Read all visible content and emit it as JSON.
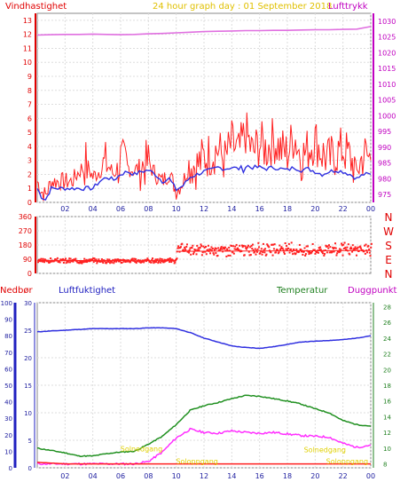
{
  "chart_data": [
    {
      "type": "line",
      "title": "24 hour graph day : 01 September 2018",
      "left_axis_label": "Vindhastighet",
      "right_axis_label": "Lufttrykk",
      "x_ticks": [
        "02",
        "04",
        "06",
        "08",
        "10",
        "12",
        "14",
        "16",
        "18",
        "20",
        "22",
        "00"
      ],
      "y_left_ticks": [
        0,
        1,
        2,
        3,
        4,
        5,
        6,
        7,
        8,
        9,
        10,
        11,
        12,
        13
      ],
      "y_left_range": [
        0,
        13.5
      ],
      "y_right_ticks": [
        975,
        980,
        985,
        990,
        995,
        1000,
        1005,
        1010,
        1015,
        1020,
        1025,
        1030
      ],
      "y_right_range": [
        972.5,
        1032.5
      ],
      "grid": true,
      "series": [
        {
          "name": "Lufttrykk",
          "axis": "right",
          "color": "#e070e0",
          "x": [
            0,
            1,
            2,
            3,
            4,
            5,
            6,
            7,
            8,
            9,
            10,
            11,
            12,
            13,
            14,
            15,
            16,
            17,
            18,
            19,
            20,
            21,
            22,
            23,
            24
          ],
          "y": [
            1025.6,
            1025.7,
            1025.8,
            1025.8,
            1025.9,
            1025.8,
            1025.7,
            1025.8,
            1026.0,
            1026.1,
            1026.3,
            1026.5,
            1026.7,
            1026.8,
            1026.9,
            1027.0,
            1027.0,
            1027.1,
            1027.1,
            1027.2,
            1027.3,
            1027.3,
            1027.4,
            1027.5,
            1028.3
          ]
        },
        {
          "axis": "left",
          "color": "#ff2020",
          "x": [
            0,
            0.3,
            0.6,
            1,
            1.5,
            2,
            2.5,
            3,
            3.5,
            4,
            4.5,
            5,
            5.5,
            6,
            6.5,
            7,
            7.5,
            8,
            8.5,
            9,
            9.5,
            10,
            10.5,
            11,
            11.5,
            12,
            12.5,
            13,
            13.5,
            14,
            14.5,
            15,
            15.5,
            16,
            16.5,
            17,
            17.5,
            18,
            18.5,
            19,
            19.5,
            20,
            20.5,
            21,
            21.5,
            22,
            22.5,
            23,
            23.5,
            24
          ],
          "y": [
            1.5,
            0.8,
            0.5,
            1.5,
            1.5,
            1.5,
            1.5,
            2.2,
            2.8,
            1.8,
            2.3,
            2.8,
            2.0,
            3.0,
            2.5,
            2.3,
            2.6,
            2.8,
            2.0,
            1.5,
            2.1,
            0.8,
            1.5,
            2.8,
            2.6,
            3.2,
            3.5,
            3.8,
            3.0,
            4.2,
            3.5,
            5.0,
            3.5,
            4.2,
            3.8,
            4.5,
            3.8,
            3.5,
            4.8,
            3.2,
            3.8,
            4.5,
            3.5,
            3.0,
            3.5,
            3.8,
            3.2,
            2.2,
            3.5,
            3.0
          ]
        },
        {
          "axis": "left",
          "color": "#3030e0",
          "x": [
            0,
            0.3,
            0.6,
            1,
            1.5,
            2,
            2.5,
            3,
            3.5,
            4,
            4.5,
            5,
            5.5,
            6,
            6.5,
            7,
            7.5,
            8,
            8.5,
            9,
            9.5,
            10,
            10.5,
            11,
            11.5,
            12,
            12.5,
            13,
            13.5,
            14,
            14.5,
            15,
            15.5,
            16,
            16.5,
            17,
            17.5,
            18,
            18.5,
            19,
            19.5,
            20,
            20.5,
            21,
            21.5,
            22,
            22.5,
            23,
            23.5,
            24
          ],
          "y": [
            1.0,
            0.4,
            0.2,
            1.0,
            1.0,
            1.0,
            1.0,
            1.0,
            1.0,
            1.0,
            1.5,
            1.8,
            1.6,
            2.0,
            2.2,
            2.0,
            2.2,
            2.3,
            2.0,
            1.5,
            1.7,
            0.9,
            1.2,
            1.8,
            2.0,
            2.2,
            2.3,
            2.5,
            2.4,
            2.5,
            2.4,
            2.6,
            2.5,
            2.5,
            2.4,
            2.5,
            2.4,
            2.3,
            2.5,
            2.3,
            2.4,
            2.2,
            2.0,
            2.2,
            2.3,
            2.2,
            2.0,
            1.7,
            2.0,
            2.0
          ]
        }
      ]
    },
    {
      "type": "scatter",
      "left_ticks": [
        0,
        90,
        180,
        270,
        360
      ],
      "y_range": [
        0,
        360
      ],
      "right_labels": [
        "N",
        "W",
        "S",
        "E",
        "N"
      ],
      "x_ticks": [
        "02",
        "04",
        "06",
        "08",
        "10",
        "12",
        "14",
        "16",
        "18",
        "20",
        "22",
        "00"
      ],
      "color": "#ff2020",
      "segments": [
        {
          "x_from": 0,
          "x_to": 10,
          "center": 80,
          "spread": 18
        },
        {
          "x_from": 10,
          "x_to": 24,
          "center": 150,
          "spread": 45
        }
      ]
    },
    {
      "type": "line",
      "labels": [
        "Nedbør",
        "Luftfuktighet",
        "Temperatur",
        "Duggpunkt"
      ],
      "nedbor_ticks": [
        0,
        10,
        20,
        30,
        40,
        50,
        60,
        70,
        80,
        90,
        100
      ],
      "luft_ticks": [
        0,
        5,
        10,
        15,
        20,
        25,
        30
      ],
      "temp_ticks": [
        8,
        10,
        12,
        14,
        16,
        18,
        20,
        22,
        24,
        26,
        28
      ],
      "temp_range": [
        7.5,
        28.5
      ],
      "annotations": [
        {
          "text": "Solnedgang",
          "x": 7.5,
          "y": 9.6
        },
        {
          "text": "Soloppgang",
          "x": 11.5,
          "y": 8.0
        },
        {
          "text": "Solnedgang",
          "x": 20.7,
          "y": 9.5
        },
        {
          "text": "Soloppgang",
          "x": 22.3,
          "y": 8.0
        }
      ],
      "series": [
        {
          "name": "Luftfuktighet",
          "color": "#3030e0",
          "x": [
            0,
            1,
            2,
            3,
            4,
            5,
            6,
            7,
            8,
            9,
            10,
            11,
            12,
            13,
            14,
            15,
            16,
            17,
            18,
            19,
            20,
            21,
            22,
            23,
            24
          ],
          "y": [
            24.8,
            24.9,
            25.0,
            25.1,
            25.2,
            25.2,
            25.2,
            25.2,
            25.3,
            25.3,
            25.2,
            24.7,
            24.0,
            23.5,
            23.0,
            22.8,
            22.7,
            22.9,
            23.2,
            23.5,
            23.6,
            23.7,
            23.8,
            24.0,
            24.3
          ]
        },
        {
          "name": "Temperatur",
          "color": "#209020",
          "x": [
            0,
            1,
            2,
            3,
            4,
            5,
            6,
            7,
            8,
            9,
            10,
            11,
            12,
            13,
            14,
            15,
            16,
            17,
            18,
            19,
            20,
            21,
            22,
            23,
            24
          ],
          "y": [
            10.0,
            9.7,
            9.4,
            9.0,
            9.0,
            9.3,
            9.5,
            9.6,
            10.5,
            11.5,
            13.0,
            14.8,
            15.4,
            15.8,
            16.3,
            16.7,
            16.6,
            16.3,
            16.0,
            15.6,
            15.0,
            14.5,
            13.5,
            13.0,
            12.8
          ]
        },
        {
          "name": "Duggpunkt",
          "color": "#ff30ff",
          "x": [
            0,
            1,
            2,
            3,
            4,
            5,
            6,
            7,
            8,
            9,
            10,
            11,
            12,
            13,
            14,
            15,
            16,
            17,
            18,
            19,
            20,
            21,
            22,
            23,
            24
          ],
          "y": [
            8.0,
            8.0,
            8.0,
            8.0,
            8.0,
            8.0,
            8.0,
            8.0,
            8.3,
            9.5,
            11.3,
            12.4,
            12.0,
            11.9,
            12.2,
            12.0,
            11.9,
            12.0,
            11.8,
            11.6,
            11.5,
            11.4,
            10.6,
            10.1,
            10.4
          ]
        },
        {
          "name": "Nedbør",
          "color": "#ff2020",
          "x": [
            0,
            2,
            4,
            6,
            24
          ],
          "y": [
            8.2,
            8.0,
            8.0,
            8.0,
            8.0
          ]
        }
      ]
    }
  ]
}
